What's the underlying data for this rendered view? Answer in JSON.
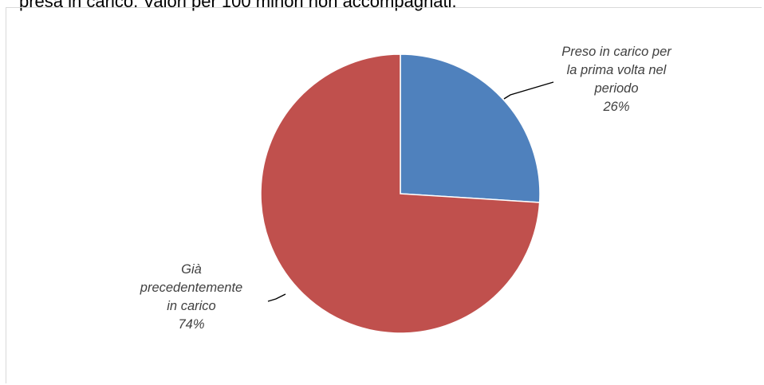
{
  "caption": "presa in carico. Valori per 100 minori non accompagnati.",
  "chart_data": {
    "type": "pie",
    "slices": [
      {
        "label_lines": [
          "Preso in carico per",
          "la prima volta nel",
          "periodo"
        ],
        "value": 26,
        "value_label": "26%",
        "color": "#4f81bd"
      },
      {
        "label_lines": [
          "Già",
          "precedentemente",
          "in carico"
        ],
        "value": 74,
        "value_label": "74%",
        "color": "#c0504d"
      }
    ],
    "start_angle_deg": 0,
    "direction": "clockwise",
    "legend": "none"
  }
}
